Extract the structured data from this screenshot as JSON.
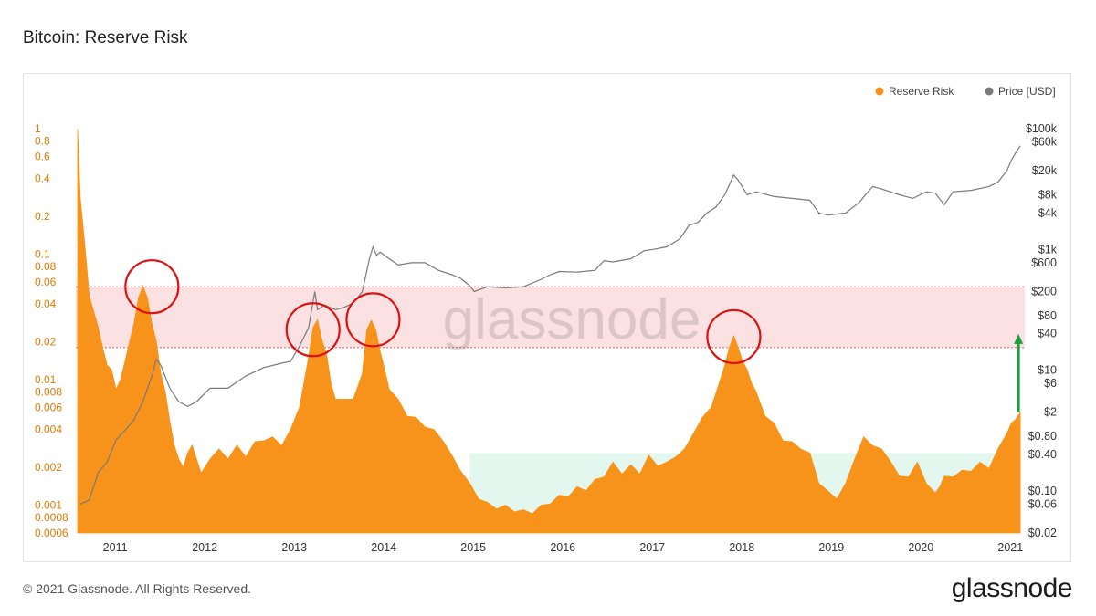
{
  "title": "Bitcoin: Reserve Risk",
  "footer": {
    "copyright": "© 2021 Glassnode. All Rights Reserved.",
    "logo": "glassnode"
  },
  "watermark": "glassnode",
  "colors": {
    "reserve_risk": "#f7931a",
    "price": "#7a7a7a",
    "high_band": "#fbe1e1",
    "low_band": "#e3f7ee",
    "circle": "#dd1111",
    "arrow": "#1aa03c",
    "left_ticks": "#e07b00"
  },
  "chart_data": {
    "type": "area",
    "title": "Bitcoin: Reserve Risk",
    "legend": {
      "placement": "top-right",
      "items": [
        {
          "label": "Reserve Risk",
          "color": "#f7931a",
          "marker": "dot"
        },
        {
          "label": "Price [USD]",
          "color": "#7a7a7a",
          "marker": "dot"
        }
      ]
    },
    "x_axis": {
      "type": "time",
      "range": [
        2010.6,
        2021.2
      ],
      "ticks": [
        {
          "v": 2011,
          "label": "2011"
        },
        {
          "v": 2012,
          "label": "2012"
        },
        {
          "v": 2013,
          "label": "2013"
        },
        {
          "v": 2014,
          "label": "2014"
        },
        {
          "v": 2015,
          "label": "2015"
        },
        {
          "v": 2016,
          "label": "2016"
        },
        {
          "v": 2017,
          "label": "2017"
        },
        {
          "v": 2018,
          "label": "2018"
        },
        {
          "v": 2019,
          "label": "2019"
        },
        {
          "v": 2020,
          "label": "2020"
        },
        {
          "v": 2021,
          "label": "2021"
        }
      ]
    },
    "y_left": {
      "scale": "log",
      "range": [
        0.0006,
        1
      ],
      "ticks": [
        {
          "v": 1,
          "label": "1"
        },
        {
          "v": 0.8,
          "label": "0.8"
        },
        {
          "v": 0.6,
          "label": "0.6"
        },
        {
          "v": 0.4,
          "label": "0.4"
        },
        {
          "v": 0.2,
          "label": "0.2"
        },
        {
          "v": 0.1,
          "label": "0.1"
        },
        {
          "v": 0.08,
          "label": "0.08"
        },
        {
          "v": 0.06,
          "label": "0.06"
        },
        {
          "v": 0.04,
          "label": "0.04"
        },
        {
          "v": 0.02,
          "label": "0.02"
        },
        {
          "v": 0.01,
          "label": "0.01"
        },
        {
          "v": 0.008,
          "label": "0.008"
        },
        {
          "v": 0.006,
          "label": "0.006"
        },
        {
          "v": 0.004,
          "label": "0.004"
        },
        {
          "v": 0.002,
          "label": "0.002"
        },
        {
          "v": 0.001,
          "label": "0.001"
        },
        {
          "v": 0.0008,
          "label": "0.0008"
        },
        {
          "v": 0.0006,
          "label": "0.0006"
        }
      ]
    },
    "y_right": {
      "scale": "log",
      "range": [
        0.02,
        100000
      ],
      "ticks": [
        {
          "v": 100000,
          "label": "$100k"
        },
        {
          "v": 60000,
          "label": "$60k"
        },
        {
          "v": 20000,
          "label": "$20k"
        },
        {
          "v": 8000,
          "label": "$8k"
        },
        {
          "v": 4000,
          "label": "$4k"
        },
        {
          "v": 1000,
          "label": "$1k"
        },
        {
          "v": 600,
          "label": "$600"
        },
        {
          "v": 200,
          "label": "$200"
        },
        {
          "v": 80,
          "label": "$80"
        },
        {
          "v": 40,
          "label": "$40"
        },
        {
          "v": 10,
          "label": "$10"
        },
        {
          "v": 6,
          "label": "$6"
        },
        {
          "v": 2,
          "label": "$2"
        },
        {
          "v": 0.8,
          "label": "$0.80"
        },
        {
          "v": 0.4,
          "label": "$0.40"
        },
        {
          "v": 0.1,
          "label": "$0.10"
        },
        {
          "v": 0.06,
          "label": "$0.06"
        },
        {
          "v": 0.02,
          "label": "$0.02"
        }
      ]
    },
    "bands": [
      {
        "name": "high",
        "range": [
          0.018,
          0.055
        ],
        "color": "#fbe1e1",
        "border": "dotted",
        "x_range": [
          2010.6,
          2021.2
        ]
      },
      {
        "name": "low",
        "range": [
          0.0009,
          0.0026
        ],
        "color": "#e3f7ee",
        "border": "dotted",
        "x_range": [
          2015.0,
          2021.15
        ]
      }
    ],
    "series": [
      {
        "name": "Reserve Risk",
        "axis": "left",
        "kind": "area",
        "color": "#f7931a",
        "x": [
          2010.62,
          2010.65,
          2010.7,
          2010.75,
          2010.8,
          2010.85,
          2010.9,
          2010.95,
          2011.0,
          2011.05,
          2011.1,
          2011.15,
          2011.2,
          2011.25,
          2011.3,
          2011.35,
          2011.4,
          2011.45,
          2011.5,
          2011.55,
          2011.6,
          2011.65,
          2011.7,
          2011.75,
          2011.8,
          2011.85,
          2011.9,
          2011.95,
          2012.0,
          2012.1,
          2012.2,
          2012.3,
          2012.4,
          2012.5,
          2012.6,
          2012.7,
          2012.8,
          2012.9,
          2013.0,
          2013.1,
          2013.2,
          2013.25,
          2013.3,
          2013.35,
          2013.4,
          2013.45,
          2013.5,
          2013.6,
          2013.7,
          2013.8,
          2013.85,
          2013.9,
          2013.95,
          2014.0,
          2014.05,
          2014.1,
          2014.2,
          2014.3,
          2014.4,
          2014.5,
          2014.6,
          2014.7,
          2014.8,
          2014.9,
          2015.0,
          2015.1,
          2015.2,
          2015.3,
          2015.4,
          2015.5,
          2015.6,
          2015.7,
          2015.8,
          2015.9,
          2016.0,
          2016.1,
          2016.2,
          2016.3,
          2016.4,
          2016.5,
          2016.6,
          2016.7,
          2016.8,
          2016.9,
          2017.0,
          2017.1,
          2017.2,
          2017.3,
          2017.4,
          2017.5,
          2017.6,
          2017.7,
          2017.8,
          2017.85,
          2017.9,
          2017.95,
          2018.0,
          2018.05,
          2018.1,
          2018.15,
          2018.2,
          2018.3,
          2018.4,
          2018.5,
          2018.6,
          2018.7,
          2018.8,
          2018.9,
          2019.0,
          2019.1,
          2019.2,
          2019.3,
          2019.4,
          2019.5,
          2019.6,
          2019.7,
          2019.8,
          2019.9,
          2020.0,
          2020.1,
          2020.2,
          2020.25,
          2020.3,
          2020.4,
          2020.5,
          2020.6,
          2020.7,
          2020.8,
          2020.9,
          2021.0,
          2021.05,
          2021.1,
          2021.15
        ],
        "values": [
          1.0,
          0.3,
          0.12,
          0.05,
          0.035,
          0.028,
          0.018,
          0.014,
          0.012,
          0.009,
          0.01,
          0.015,
          0.02,
          0.03,
          0.045,
          0.06,
          0.045,
          0.03,
          0.02,
          0.012,
          0.008,
          0.005,
          0.003,
          0.0025,
          0.002,
          0.0028,
          0.003,
          0.0025,
          0.0018,
          0.0025,
          0.0028,
          0.0025,
          0.003,
          0.0026,
          0.0032,
          0.0035,
          0.0035,
          0.0032,
          0.004,
          0.0065,
          0.015,
          0.028,
          0.03,
          0.022,
          0.016,
          0.01,
          0.007,
          0.0075,
          0.007,
          0.012,
          0.025,
          0.032,
          0.025,
          0.018,
          0.012,
          0.009,
          0.007,
          0.0055,
          0.005,
          0.0045,
          0.004,
          0.0035,
          0.0025,
          0.002,
          0.0015,
          0.0012,
          0.00105,
          0.001,
          0.001,
          0.00095,
          0.00092,
          0.00092,
          0.001,
          0.0011,
          0.0012,
          0.00125,
          0.0014,
          0.0014,
          0.0016,
          0.0018,
          0.0022,
          0.0019,
          0.0021,
          0.0019,
          0.0025,
          0.0022,
          0.0022,
          0.0026,
          0.0028,
          0.004,
          0.005,
          0.0065,
          0.01,
          0.014,
          0.018,
          0.024,
          0.018,
          0.015,
          0.012,
          0.01,
          0.008,
          0.0055,
          0.0045,
          0.0035,
          0.0032,
          0.003,
          0.0026,
          0.0016,
          0.0013,
          0.0012,
          0.0015,
          0.0025,
          0.0035,
          0.0032,
          0.0028,
          0.0024,
          0.0017,
          0.0018,
          0.0022,
          0.0016,
          0.00125,
          0.0015,
          0.0017,
          0.0018,
          0.0019,
          0.002,
          0.0022,
          0.0021,
          0.0028,
          0.004,
          0.0045,
          0.0052,
          0.0055
        ],
        "note": "Approximate values read from chart"
      },
      {
        "name": "Price [USD]",
        "axis": "right",
        "kind": "line",
        "color": "#7a7a7a",
        "x": [
          2010.65,
          2010.75,
          2010.85,
          2010.95,
          2011.05,
          2011.15,
          2011.25,
          2011.35,
          2011.45,
          2011.5,
          2011.55,
          2011.65,
          2011.75,
          2011.85,
          2011.95,
          2012.1,
          2012.3,
          2012.5,
          2012.7,
          2012.9,
          2013.0,
          2013.1,
          2013.2,
          2013.27,
          2013.3,
          2013.38,
          2013.5,
          2013.6,
          2013.7,
          2013.8,
          2013.88,
          2013.92,
          2013.96,
          2014.0,
          2014.1,
          2014.2,
          2014.35,
          2014.5,
          2014.65,
          2014.8,
          2014.9,
          2015.0,
          2015.05,
          2015.2,
          2015.4,
          2015.6,
          2015.8,
          2015.9,
          2016.0,
          2016.2,
          2016.4,
          2016.5,
          2016.6,
          2016.8,
          2016.95,
          2017.05,
          2017.2,
          2017.35,
          2017.45,
          2017.55,
          2017.65,
          2017.75,
          2017.85,
          2017.95,
          2018.0,
          2018.1,
          2018.2,
          2018.4,
          2018.6,
          2018.8,
          2018.9,
          2019.0,
          2019.2,
          2019.35,
          2019.5,
          2019.6,
          2019.8,
          2019.95,
          2020.1,
          2020.2,
          2020.3,
          2020.4,
          2020.6,
          2020.8,
          2020.9,
          2021.0,
          2021.05,
          2021.1,
          2021.15
        ],
        "values": [
          0.06,
          0.07,
          0.2,
          0.3,
          0.7,
          1.0,
          1.5,
          3,
          8,
          15,
          12,
          5,
          3,
          2.5,
          3,
          5,
          5,
          8,
          11,
          13,
          14,
          25,
          50,
          200,
          100,
          120,
          100,
          110,
          130,
          200,
          700,
          1100,
          800,
          900,
          700,
          550,
          600,
          600,
          450,
          380,
          330,
          250,
          200,
          240,
          230,
          240,
          320,
          380,
          430,
          420,
          450,
          650,
          620,
          700,
          950,
          1000,
          1100,
          1500,
          2500,
          2800,
          4000,
          5000,
          8000,
          17000,
          14000,
          8000,
          9000,
          7500,
          7000,
          6500,
          4000,
          3700,
          4000,
          6000,
          11000,
          10000,
          8000,
          7000,
          9000,
          8500,
          5500,
          9000,
          9500,
          11000,
          13000,
          20000,
          30000,
          40000,
          52000
        ],
        "note": "Approximate values read from chart"
      }
    ],
    "annotations": [
      {
        "type": "circle",
        "x": 2011.45,
        "y": 0.055,
        "axis": "left",
        "color": "#dd1111"
      },
      {
        "type": "circle",
        "x": 2013.25,
        "y": 0.025,
        "axis": "left",
        "color": "#dd1111"
      },
      {
        "type": "circle",
        "x": 2013.92,
        "y": 0.03,
        "axis": "left",
        "color": "#dd1111"
      },
      {
        "type": "circle",
        "x": 2017.95,
        "y": 0.022,
        "axis": "left",
        "color": "#dd1111"
      },
      {
        "type": "arrow",
        "x": 2021.13,
        "y_from": 0.0055,
        "y_to": 0.022,
        "axis": "left",
        "color": "#1aa03c",
        "direction": "up"
      }
    ]
  }
}
